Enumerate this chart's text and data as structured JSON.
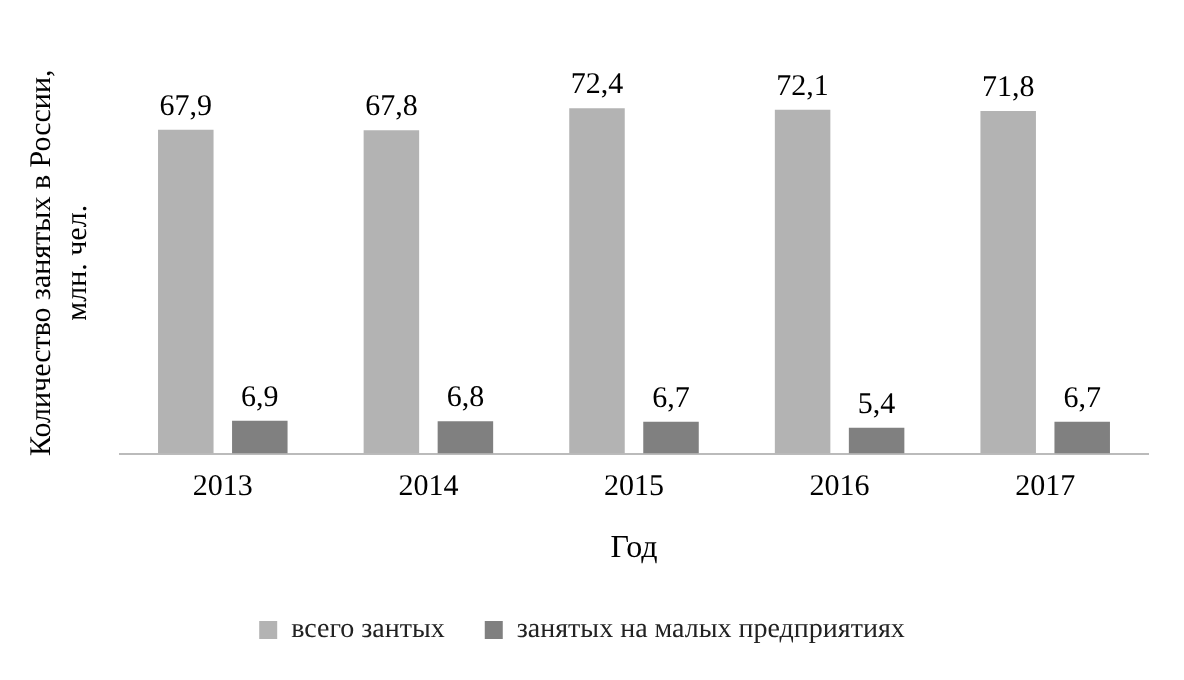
{
  "chart_data": {
    "type": "bar",
    "xlabel": "Год",
    "ylabel": "Количество занятых в России, млн. чел.",
    "categories": [
      "2013",
      "2014",
      "2015",
      "2016",
      "2017"
    ],
    "series": [
      {
        "name": "всего зантых",
        "color": "#b3b3b3",
        "values": [
          67.9,
          67.8,
          72.4,
          72.1,
          71.8
        ],
        "value_labels": [
          "67,9",
          "67,8",
          "72,4",
          "72,1",
          "71,8"
        ]
      },
      {
        "name": "занятых на малых предприятиях",
        "color": "#808080",
        "values": [
          6.9,
          6.8,
          6.7,
          5.4,
          6.7
        ],
        "value_labels": [
          "6,9",
          "6,8",
          "6,7",
          "5,4",
          "6,7"
        ]
      }
    ],
    "legend": "bottom",
    "grid": false
  }
}
